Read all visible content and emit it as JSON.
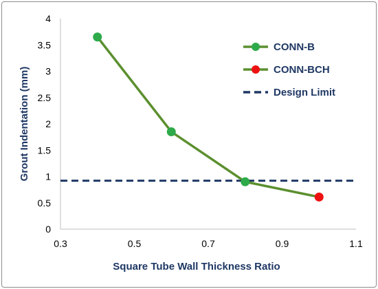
{
  "chart_data": {
    "type": "line",
    "title": "",
    "xlabel": "Square Tube Wall Thickness Ratio",
    "ylabel": "Grout Indentation (mm)",
    "xlim": [
      0.3,
      1.1
    ],
    "ylim": [
      0,
      4
    ],
    "xticks": [
      "0.3",
      "0.5",
      "0.7",
      "0.9",
      "1.1"
    ],
    "yticks": [
      "0",
      "0.5",
      "1",
      "1.5",
      "2",
      "2.5",
      "3",
      "3.5",
      "4"
    ],
    "grid": false,
    "legend_position": "top-right",
    "series": [
      {
        "name": "CONN-B",
        "color": "#5b8f2e",
        "marker_color": "#2eaa4a",
        "x": [
          0.4,
          0.6,
          0.8
        ],
        "y": [
          3.65,
          1.85,
          0.9
        ]
      },
      {
        "name": "CONN-BCH",
        "color": "#5b8f2e",
        "marker_color": "#ee1111",
        "x": [
          0.8,
          1.0
        ],
        "y": [
          0.9,
          0.61
        ]
      }
    ],
    "reference_lines": [
      {
        "name": "Design Limit",
        "y": 0.92,
        "color": "#1f3864",
        "style": "dashed"
      }
    ]
  }
}
